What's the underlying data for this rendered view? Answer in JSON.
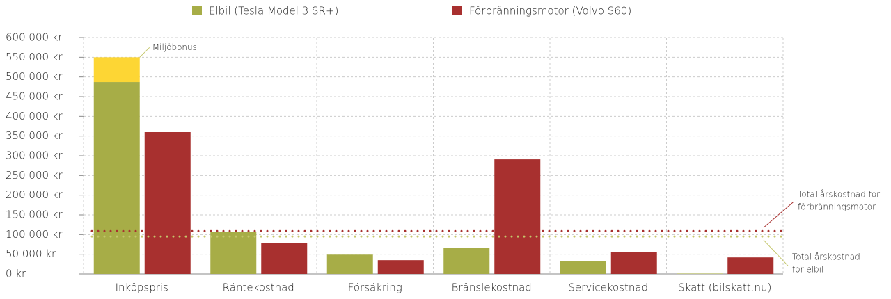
{
  "chart_data": {
    "type": "bar",
    "categories": [
      "Inköpspris",
      "Räntekostnad",
      "Försäkring",
      "Bränslekostnad",
      "Servicekostnad",
      "Skatt (bilskatt.nu)"
    ],
    "series": [
      {
        "name": "Elbil (Tesla Model 3 SR+)",
        "color": "#a7ad47",
        "values": [
          487000,
          106000,
          49000,
          67000,
          32000,
          1000
        ]
      },
      {
        "name": "Förbränningsmotor (Volvo S60)",
        "color": "#a8302f",
        "values": [
          360000,
          78000,
          35000,
          291000,
          56000,
          42000
        ]
      }
    ],
    "bonus": {
      "label": "Miljöbonus",
      "value": 63000,
      "color": "#fdd634",
      "category": 0
    },
    "reference_lines": [
      {
        "label": [
          "Total årskostnad för",
          "förbränningsmotor"
        ],
        "value": 109000,
        "color": "#a8302f"
      },
      {
        "label": [
          "Total årskostnad",
          "för elbil"
        ],
        "value": 95000,
        "color": "#c4c66a"
      }
    ],
    "ylim": [
      0,
      600000
    ],
    "yticks": [
      {
        "value": 0,
        "label": "0 kr"
      },
      {
        "value": 50000,
        "label": "50 000 kr"
      },
      {
        "value": 100000,
        "label": "100 000 kr"
      },
      {
        "value": 150000,
        "label": "150 000 kr"
      },
      {
        "value": 200000,
        "label": "200 000 kr"
      },
      {
        "value": 250000,
        "label": "250 000 kr"
      },
      {
        "value": 300000,
        "label": "300 000 kr"
      },
      {
        "value": 350000,
        "label": "350 000 kr"
      },
      {
        "value": 400000,
        "label": "400 000 kr"
      },
      {
        "value": 450000,
        "label": "450 000 kr"
      },
      {
        "value": 500000,
        "label": "500 000 kr"
      },
      {
        "value": 550000,
        "label": "550 000 kr"
      },
      {
        "value": 600000,
        "label": "600 000 kr"
      }
    ],
    "grid": true
  }
}
